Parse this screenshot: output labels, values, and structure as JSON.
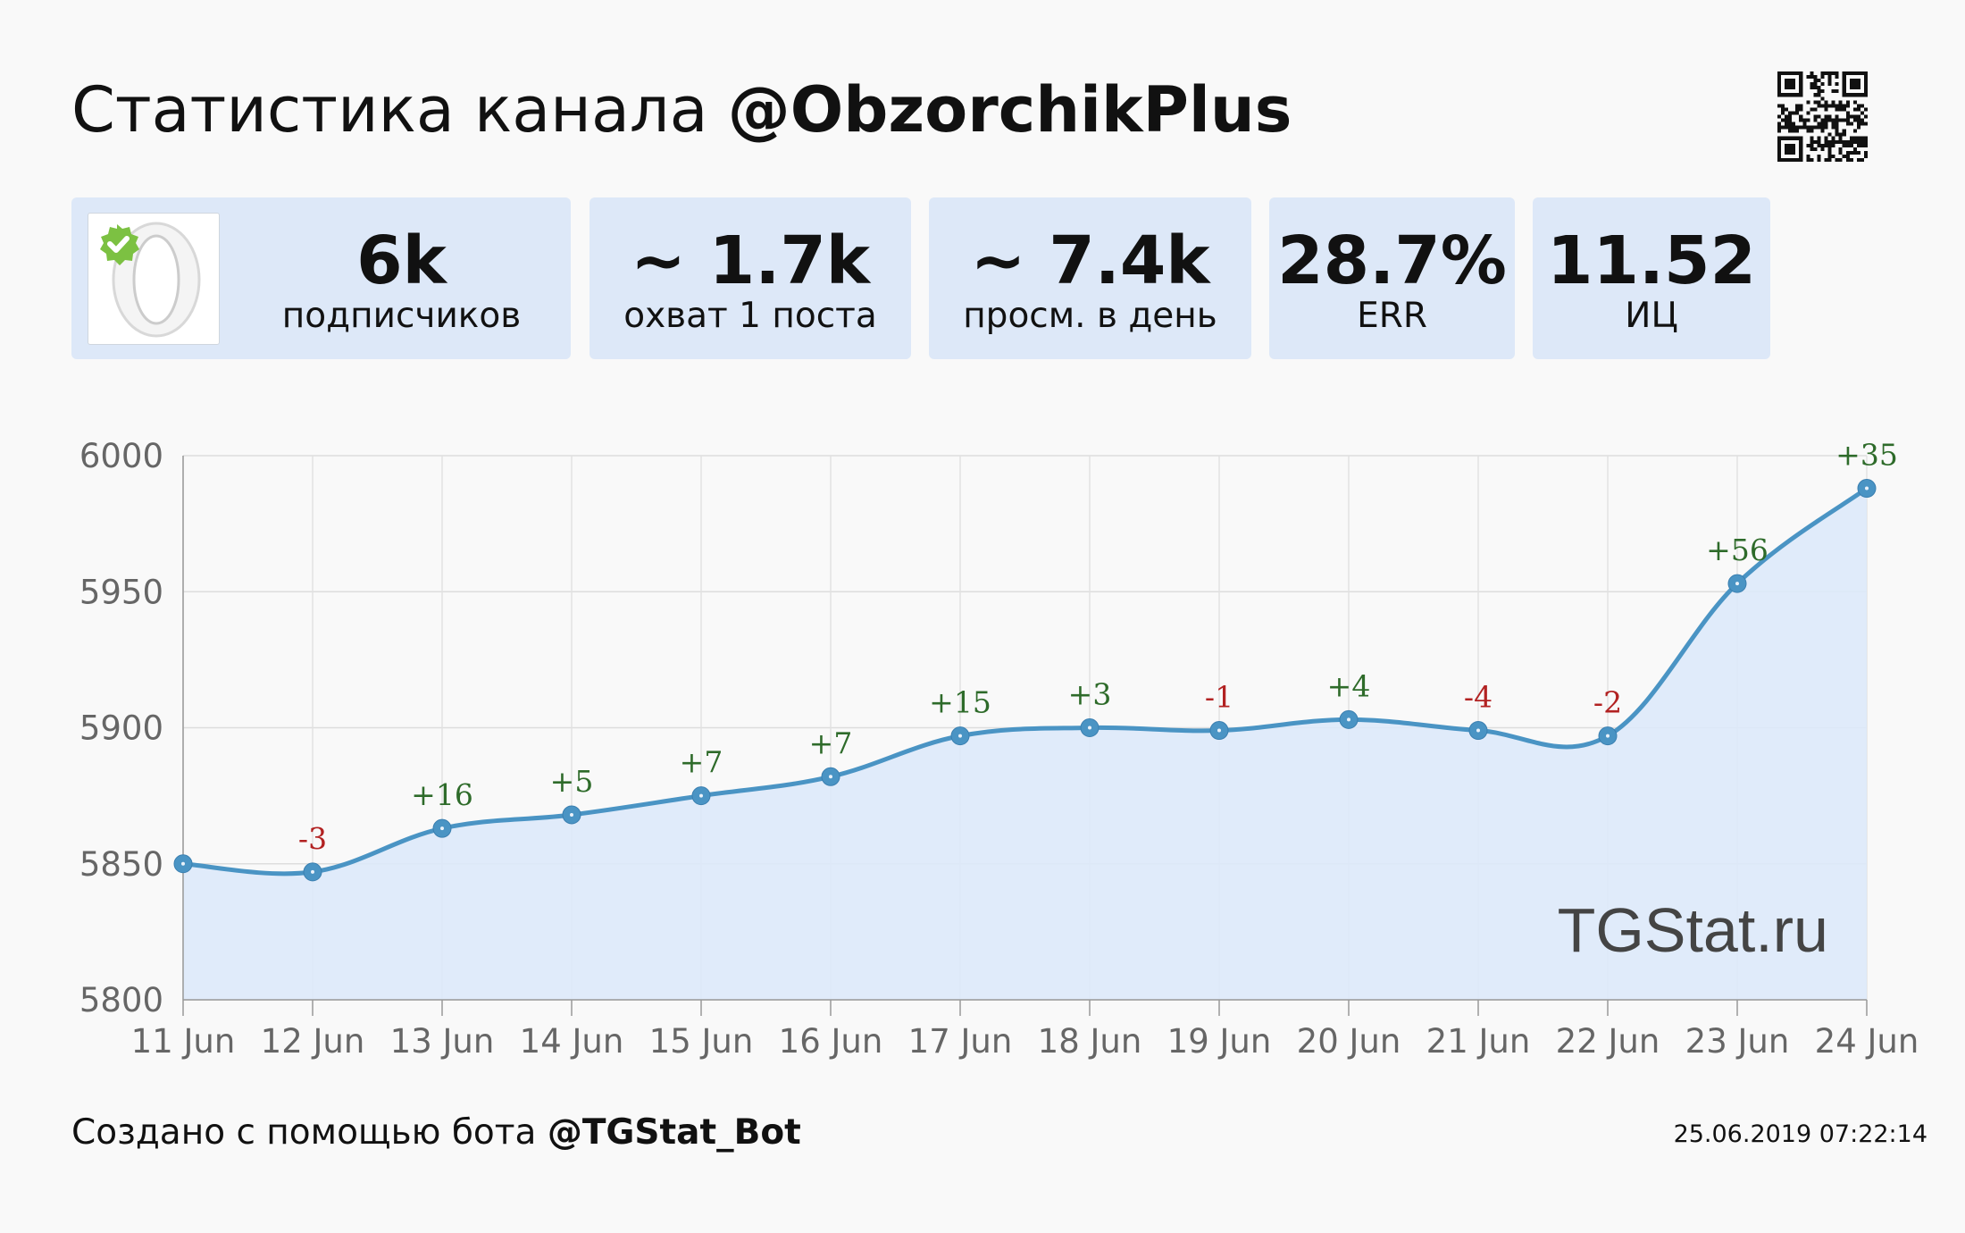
{
  "header": {
    "title_prefix": "Статистика канала",
    "channel": "@ObzorchikPlus"
  },
  "stats": [
    {
      "value": "6k",
      "label": "подписчиков"
    },
    {
      "value": "~ 1.7k",
      "label": "охват 1 поста"
    },
    {
      "value": "~ 7.4k",
      "label": "просм. в день"
    },
    {
      "value": "28.7%",
      "label": "ERR"
    },
    {
      "value": "11.52",
      "label": "ИЦ"
    }
  ],
  "colors": {
    "line": "#4a94c4",
    "area": "#dde9fa",
    "positive_delta": "#2e6b2a",
    "negative_delta": "#b22222",
    "card_bg": "#dde8f8",
    "verified_badge": "#7cc142"
  },
  "icons": {
    "avatar": "channel-avatar-letter-o",
    "badge": "verified-check-icon",
    "qr": "qr-code-icon"
  },
  "chart_data": {
    "type": "area",
    "title": "",
    "xlabel": "",
    "ylabel": "",
    "x": [
      "11 Jun",
      "12 Jun",
      "13 Jun",
      "14 Jun",
      "15 Jun",
      "16 Jun",
      "17 Jun",
      "18 Jun",
      "19 Jun",
      "20 Jun",
      "21 Jun",
      "22 Jun",
      "23 Jun",
      "24 Jun"
    ],
    "y": [
      5850,
      5847,
      5863,
      5868,
      5875,
      5882,
      5897,
      5900,
      5899,
      5903,
      5899,
      5897,
      5953,
      5988
    ],
    "deltas": [
      "",
      "-3",
      "+16",
      "+5",
      "+7",
      "+7",
      "+15",
      "+3",
      "-1",
      "+4",
      "-4",
      "-2",
      "+56",
      "+35"
    ],
    "ylim": [
      5800,
      6000
    ],
    "yticks": [
      "5800",
      "5850",
      "5900",
      "5950",
      "6000"
    ],
    "grid": true,
    "watermark": "TGStat.ru"
  },
  "footer": {
    "prefix": "Создано с помощью бота",
    "bot": "@TGStat_Bot",
    "timestamp": "25.06.2019 07:22:14"
  }
}
